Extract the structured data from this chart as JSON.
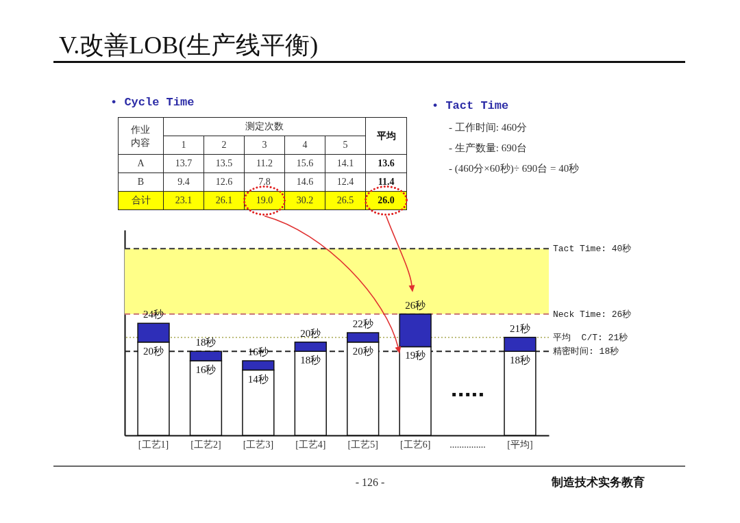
{
  "chart_data": [
    {
      "type": "heatmap",
      "title": "V.改善LOB(生产线平衡)",
      "subtitle": "• Cycle Time",
      "xlabel": "测定次数",
      "ylabel": "作业内容",
      "categories": [
        "1",
        "2",
        "3",
        "4",
        "5",
        "平均"
      ],
      "y_categories": [
        "A",
        "B",
        "合计"
      ],
      "cells": [
        [
          13.7,
          13.5,
          11.2,
          15.6,
          14.1,
          13.6
        ],
        [
          9.4,
          12.6,
          7.8,
          14.6,
          12.4,
          11.4
        ],
        [
          23.1,
          26.1,
          19.0,
          30.2,
          26.5,
          26.0
        ]
      ],
      "cell_labels": [
        [
          "13.7",
          "13.5",
          "11.2",
          "15.6",
          "14.1",
          "13.6"
        ],
        [
          "9.4",
          "12.6",
          "7.8",
          "14.6",
          "12.4",
          "11.4"
        ],
        [
          "23.1",
          "26.1",
          "19.0",
          "30.2",
          "26.5",
          "26.0"
        ]
      ],
      "bands": [
        {
          "axis": "y",
          "from": "合计",
          "to": "合计",
          "color": "#ffff00"
        }
      ]
    },
    {
      "type": "other",
      "title": "• Tact Time",
      "annotations": [
        "- 工作时间: 460分",
        "- 生产数量: 690台",
        "- (460分×60秒)÷ 690台 = 40秒"
      ]
    },
    {
      "type": "bar",
      "stacked": true,
      "categories": [
        "[工艺1]",
        "[工艺2]",
        "[工艺3]",
        "[工艺4]",
        "[工艺5]",
        "[工艺6]",
        "...............",
        "[平均]"
      ],
      "series": [
        {
          "color": "#ffffff",
          "values": [
            20,
            16,
            14,
            18,
            20,
            19,
            null,
            18
          ],
          "value_labels": [
            "20秒",
            "16秒",
            "14秒",
            "18秒",
            "20秒",
            "19秒",
            null,
            "18秒"
          ]
        },
        {
          "color": "#2e2eb8",
          "values": [
            4,
            2,
            2,
            2,
            2,
            7,
            null,
            3
          ]
        }
      ],
      "totals": [
        "24秒",
        "18秒",
        "16秒",
        "20秒",
        "22秒",
        "26秒",
        null,
        "21秒"
      ],
      "ylim": [
        0,
        44
      ],
      "tick_labels": "x",
      "ref_lines": [
        {
          "axis": "y",
          "value": 40,
          "label": "Tact Time: 40秒",
          "color": "#333333",
          "line_style": "dashed"
        },
        {
          "axis": "y",
          "value": 26,
          "label": "Neck Time: 26秒",
          "color": "#c87070",
          "line_style": "dashed"
        },
        {
          "axis": "y",
          "value": 21,
          "label": "平均  C/T: 21秒",
          "color": "#b5b56a",
          "line_style": "dotted"
        },
        {
          "axis": "y",
          "value": 18,
          "label": "精密时间: 18秒",
          "color": "#222222",
          "line_style": "dashed"
        }
      ],
      "bands": [
        {
          "axis": "y",
          "from": 26,
          "to": 40,
          "color": "#ffff88"
        }
      ],
      "annotations": [
        "▪ ▪ ▪ ▪ ▪",
        "- 126 -",
        "制造技术实务教育"
      ]
    }
  ]
}
